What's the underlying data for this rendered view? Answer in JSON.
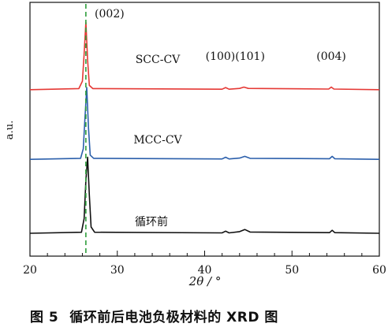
{
  "chart_data": {
    "type": "line",
    "xlabel": "2θ / °",
    "ylabel": "a.u.",
    "xlim": [
      20,
      60
    ],
    "xticks": [
      20,
      30,
      40,
      50,
      60
    ],
    "minor_xtick_step": 2,
    "y_tick_labels": false,
    "grid": false,
    "reference_line": {
      "x": 26.4,
      "style": "dashed",
      "color": "#2e9e3c"
    },
    "peaks": [
      {
        "label": "(002)",
        "x": 26.4
      },
      {
        "label": "(100)(101)",
        "x": 43.5
      },
      {
        "label": "(004)",
        "x": 54.5
      }
    ],
    "series": [
      {
        "name": "SCC-CV",
        "color": "#e53935",
        "baseline": 0.68,
        "points": [
          [
            20,
            0.68
          ],
          [
            25.6,
            0.685
          ],
          [
            26.0,
            0.72
          ],
          [
            26.2,
            0.85
          ],
          [
            26.4,
            1.0
          ],
          [
            26.6,
            0.82
          ],
          [
            26.8,
            0.7
          ],
          [
            27.2,
            0.685
          ],
          [
            42.0,
            0.682
          ],
          [
            42.4,
            0.69
          ],
          [
            42.8,
            0.682
          ],
          [
            44.0,
            0.686
          ],
          [
            44.5,
            0.692
          ],
          [
            45.0,
            0.686
          ],
          [
            54.2,
            0.683
          ],
          [
            54.5,
            0.692
          ],
          [
            54.8,
            0.683
          ],
          [
            60,
            0.68
          ]
        ]
      },
      {
        "name": "MCC-CV",
        "color": "#2b5fab",
        "baseline": 0.35,
        "points": [
          [
            20,
            0.35
          ],
          [
            25.8,
            0.355
          ],
          [
            26.1,
            0.4
          ],
          [
            26.3,
            0.55
          ],
          [
            26.5,
            0.69
          ],
          [
            26.7,
            0.5
          ],
          [
            26.9,
            0.37
          ],
          [
            27.3,
            0.355
          ],
          [
            42.0,
            0.352
          ],
          [
            42.4,
            0.36
          ],
          [
            42.8,
            0.352
          ],
          [
            44.0,
            0.356
          ],
          [
            44.6,
            0.364
          ],
          [
            45.2,
            0.355
          ],
          [
            54.3,
            0.353
          ],
          [
            54.6,
            0.364
          ],
          [
            54.9,
            0.353
          ],
          [
            60,
            0.35
          ]
        ]
      },
      {
        "name": "循环前",
        "color": "#111111",
        "baseline": 0.0,
        "points": [
          [
            20,
            0.0
          ],
          [
            25.9,
            0.005
          ],
          [
            26.2,
            0.07
          ],
          [
            26.4,
            0.25
          ],
          [
            26.6,
            0.36
          ],
          [
            26.8,
            0.18
          ],
          [
            27.0,
            0.03
          ],
          [
            27.4,
            0.005
          ],
          [
            42.0,
            0.002
          ],
          [
            42.4,
            0.01
          ],
          [
            42.8,
            0.002
          ],
          [
            44.0,
            0.008
          ],
          [
            44.6,
            0.018
          ],
          [
            45.2,
            0.006
          ],
          [
            54.3,
            0.003
          ],
          [
            54.6,
            0.014
          ],
          [
            54.9,
            0.003
          ],
          [
            60,
            0.0
          ]
        ]
      }
    ]
  },
  "caption": {
    "number": "图 5",
    "text": "循环前后电池负极材料的 XRD 图"
  }
}
